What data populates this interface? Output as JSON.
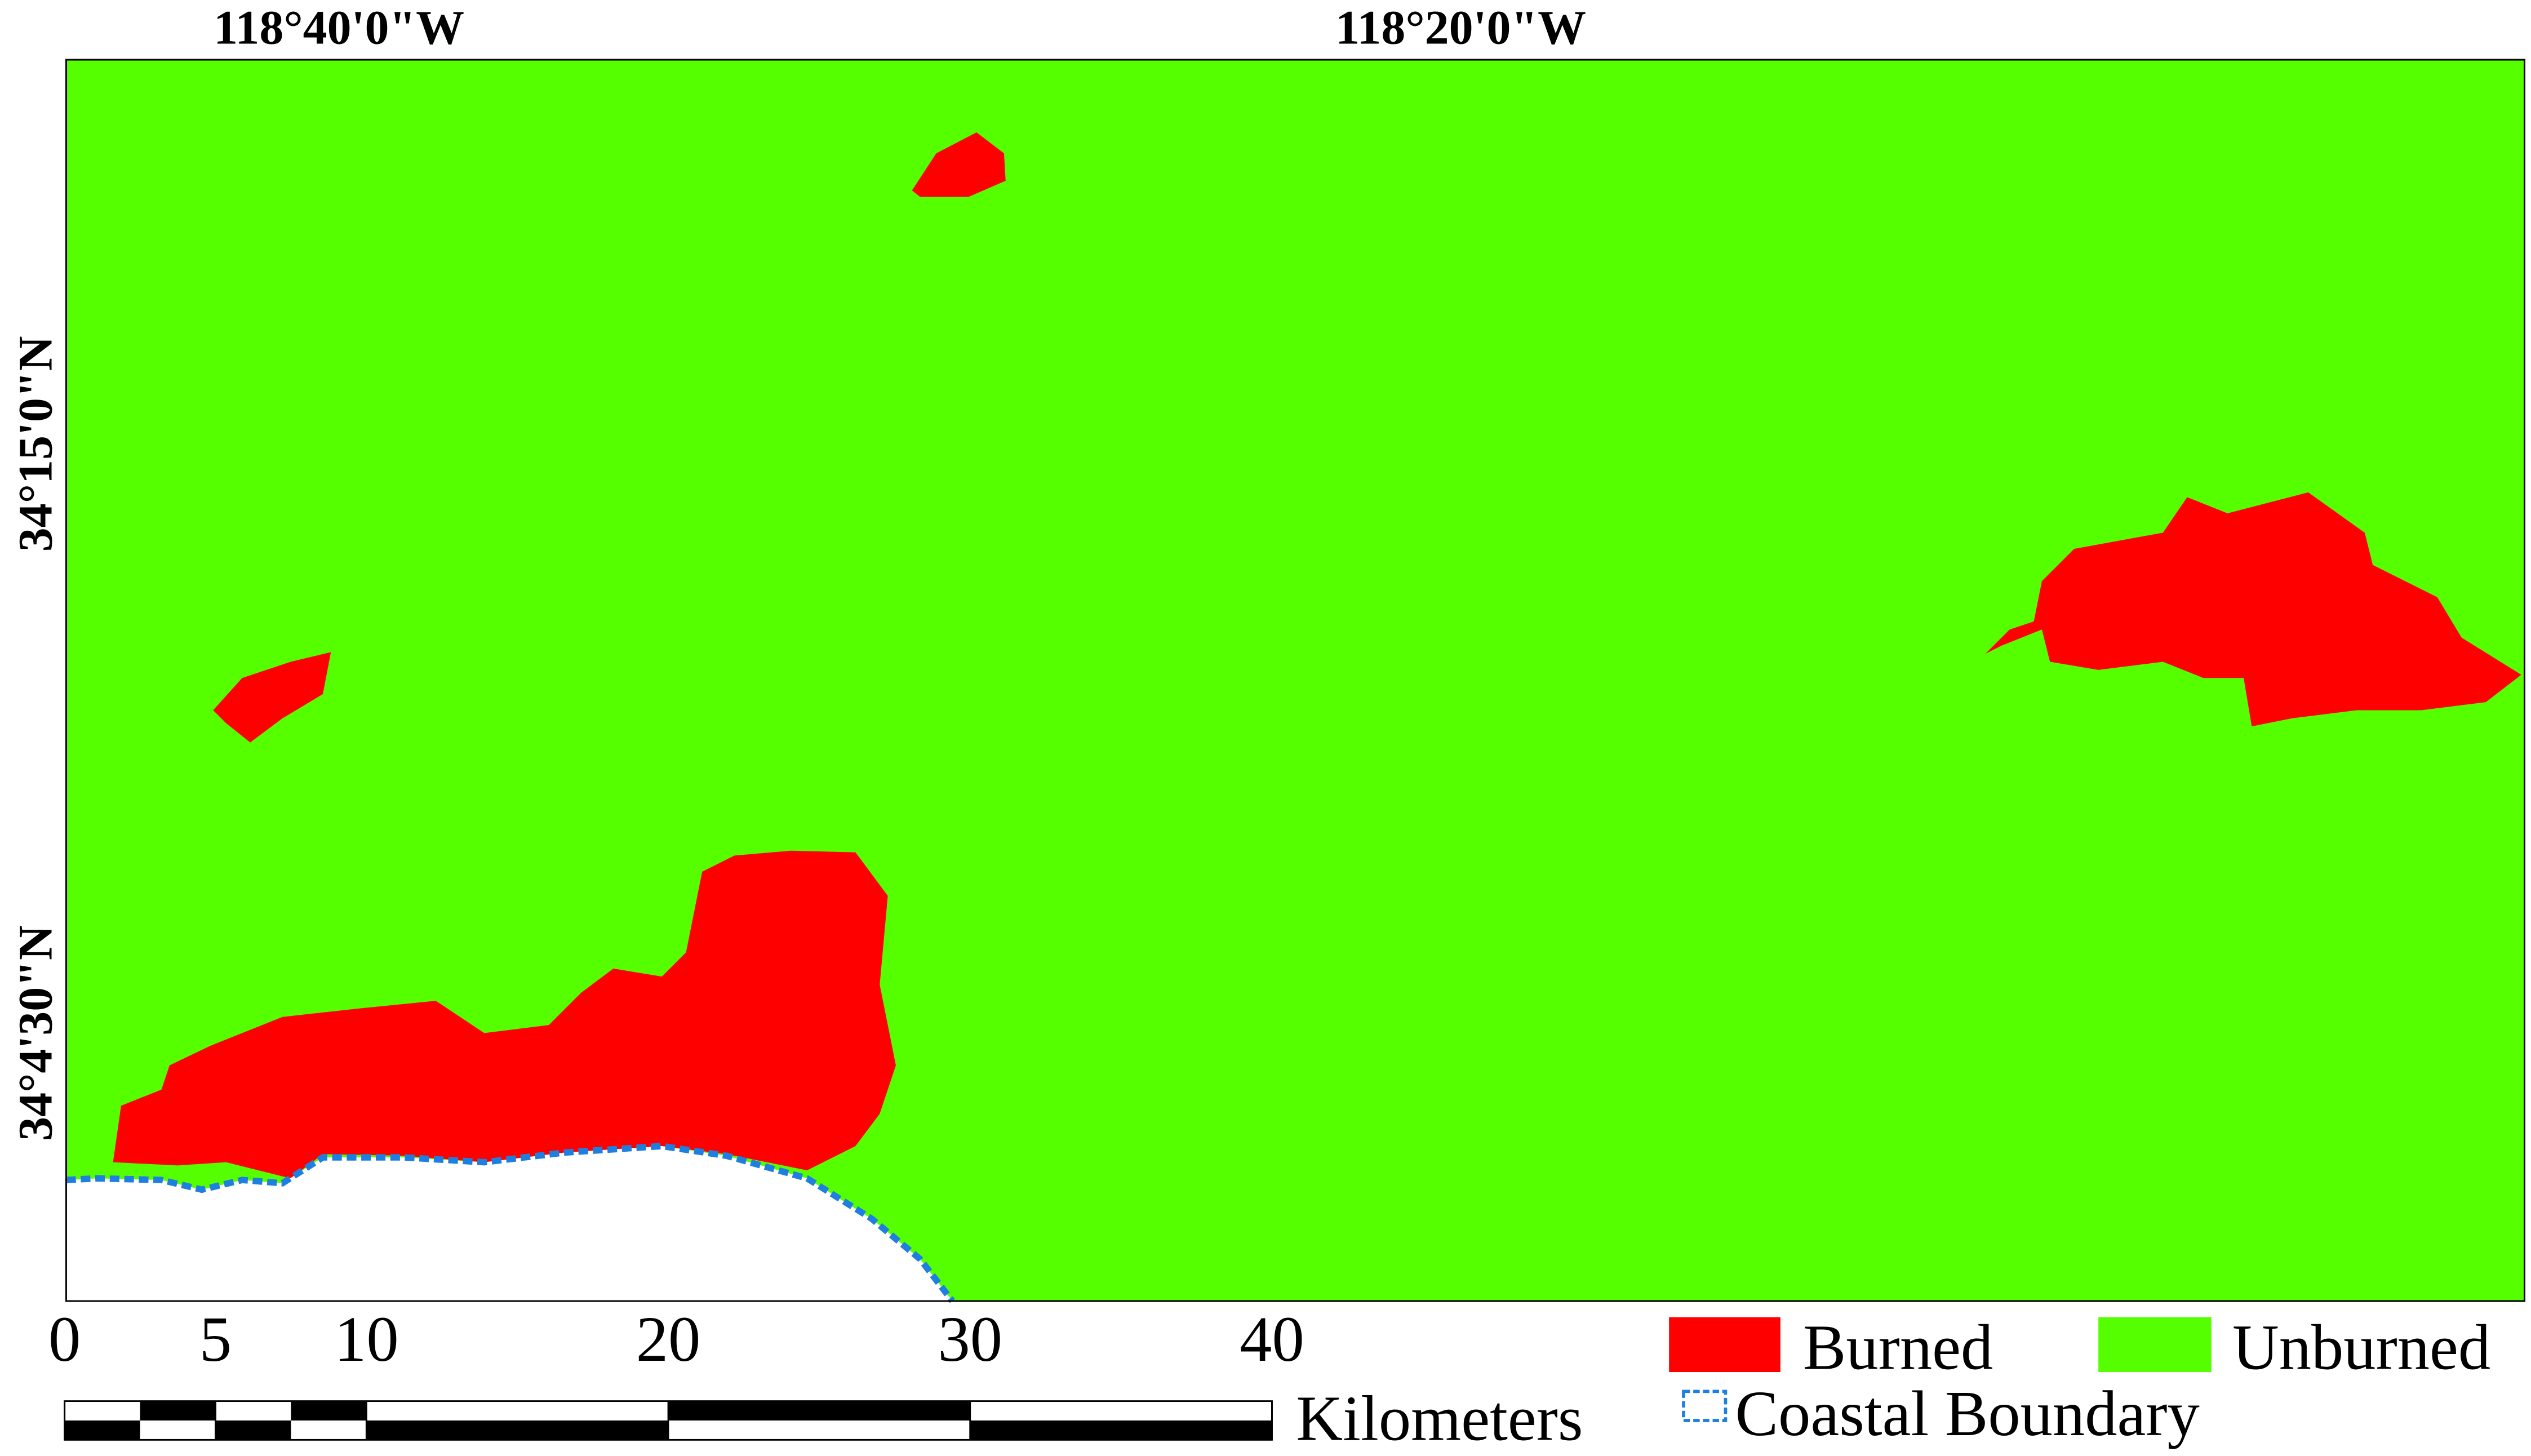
{
  "map": {
    "longitude_labels": [
      "118°40'0\"W",
      "118°20'0\"W"
    ],
    "latitude_labels": [
      "34°15'0\"N",
      "34°4'30\"N"
    ],
    "scale_bar": {
      "ticks": [
        0,
        5,
        10,
        20,
        30,
        40
      ],
      "unit": "Kilometers"
    },
    "legend": [
      {
        "label": "Burned",
        "color": "#ff0000"
      },
      {
        "label": "Unburned",
        "color": "#55ff00"
      },
      {
        "label": "Coastal Boundary",
        "color": "#1e7fe0"
      }
    ]
  }
}
